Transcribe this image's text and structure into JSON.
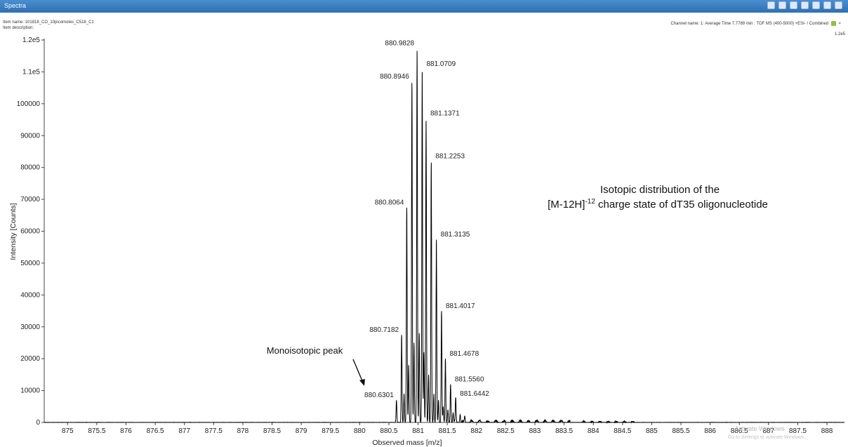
{
  "window": {
    "title": "Spectra",
    "toolbar_icons": [
      "settings-icon",
      "zoom-icon",
      "copy-icon",
      "print-icon",
      "export-icon",
      "dropdown-icon",
      "close-icon"
    ]
  },
  "meta": {
    "item_name": "Item name: 101818_CO_10picomoles_C518_C1",
    "item_description": "Item description:",
    "channel": "Channel name: 1: Average Time 7.7789 min : TOF MS (400-5000) +ESI- / Combined",
    "corner_scale": "1.2e5"
  },
  "chart_data": {
    "type": "line",
    "xlabel": "Observed mass [m/z]",
    "ylabel": "Intensity [Counts]",
    "xlim": [
      874.6,
      888.3
    ],
    "ylim": [
      0,
      120000
    ],
    "xticks": [
      875,
      875.5,
      876,
      876.5,
      877,
      877.5,
      878,
      878.5,
      879,
      879.5,
      880,
      880.5,
      881,
      881.5,
      882,
      882.5,
      883,
      883.5,
      884,
      884.5,
      885,
      885.5,
      886,
      886.5,
      887,
      887.5,
      888
    ],
    "xtick_labels": [
      "875",
      "875.5",
      "876",
      "876.5",
      "877",
      "877.5",
      "878",
      "878.5",
      "879",
      "879.5",
      "880",
      "880.5",
      "881",
      "881.5",
      "882",
      "882.5",
      "883",
      "883.5",
      "884",
      "884.5",
      "885",
      "885.5",
      "886",
      "886.5",
      "887",
      "887.5",
      "888"
    ],
    "yticks": [
      0,
      10000,
      20000,
      30000,
      40000,
      50000,
      60000,
      70000,
      80000,
      90000,
      100000,
      110000,
      120000
    ],
    "ytick_labels": [
      "0",
      "10000",
      "20000",
      "30000",
      "40000",
      "50000",
      "60000",
      "70000",
      "80000",
      "90000",
      "100000",
      "1.1e5",
      "1.2e5"
    ],
    "peaks": [
      {
        "mz": 880.6301,
        "intensity": 7000,
        "label": "880.6301"
      },
      {
        "mz": 880.7182,
        "intensity": 27500,
        "label": "880.7182"
      },
      {
        "mz": 880.8064,
        "intensity": 67500,
        "label": "880.8064"
      },
      {
        "mz": 880.8946,
        "intensity": 107000,
        "label": "880.8946"
      },
      {
        "mz": 880.9828,
        "intensity": 117500,
        "label": "880.9828"
      },
      {
        "mz": 881.0709,
        "intensity": 111000,
        "label": "881.0709"
      },
      {
        "mz": 881.1371,
        "intensity": 95500,
        "label": "881.1371"
      },
      {
        "mz": 881.2253,
        "intensity": 82000,
        "label": "881.2253"
      },
      {
        "mz": 881.3135,
        "intensity": 57500,
        "label": "881.3135"
      },
      {
        "mz": 881.4017,
        "intensity": 35000,
        "label": "881.4017"
      },
      {
        "mz": 881.4678,
        "intensity": 20000,
        "label": "881.4678"
      },
      {
        "mz": 881.556,
        "intensity": 12000,
        "label": "881.5560"
      },
      {
        "mz": 881.6442,
        "intensity": 7500,
        "label": "881.6442"
      }
    ],
    "minor_peaks": [
      {
        "mz": 880.76,
        "intensity": 9000
      },
      {
        "mz": 880.84,
        "intensity": 18000
      },
      {
        "mz": 880.93,
        "intensity": 25000
      },
      {
        "mz": 881.02,
        "intensity": 28000
      },
      {
        "mz": 881.1,
        "intensity": 22000
      },
      {
        "mz": 881.18,
        "intensity": 15000
      },
      {
        "mz": 881.27,
        "intensity": 9000
      },
      {
        "mz": 881.35,
        "intensity": 7000
      },
      {
        "mz": 881.43,
        "intensity": 5000
      },
      {
        "mz": 881.51,
        "intensity": 4000
      },
      {
        "mz": 881.6,
        "intensity": 3000
      },
      {
        "mz": 881.72,
        "intensity": 2500
      },
      {
        "mz": 881.8,
        "intensity": 1800
      }
    ],
    "annotations": {
      "monoisotopic": "Monoisotopic peak",
      "distribution_line1": "Isotopic distribution of the",
      "distribution_prefix": "[M-12H]",
      "distribution_sup": "-12",
      "distribution_suffix": " charge state of dT35 oligonucleotide"
    },
    "watermark": "Activate Windows",
    "watermark_sub": "Go to Settings to activate Windows.",
    "grid": false,
    "legend": "none"
  }
}
